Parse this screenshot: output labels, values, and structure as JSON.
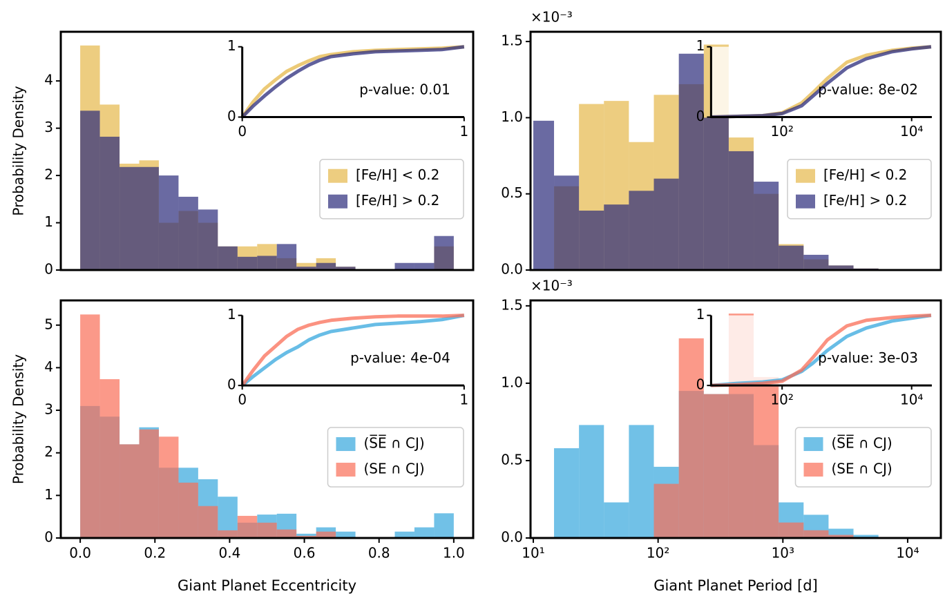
{
  "chart_data": [
    {
      "type": "histogram",
      "ylabel": "Probability Density",
      "bins": [
        0,
        0.0526,
        0.1053,
        0.1579,
        0.2105,
        0.2632,
        0.3158,
        0.3684,
        0.4211,
        0.4737,
        0.5263,
        0.5789,
        0.6316,
        0.6842,
        0.7368,
        0.7895,
        0.8421,
        0.8947,
        0.9474,
        1
      ],
      "series": [
        {
          "name": "[Fe/H] < 0.2",
          "color": "#e6b84a",
          "values": [
            4.75,
            3.5,
            2.25,
            2.32,
            1.0,
            1.25,
            1.0,
            0.5,
            0.5,
            0.55,
            0.25,
            0.15,
            0.25,
            0.07,
            0,
            0,
            0,
            0,
            0.5
          ]
        },
        {
          "name": "[Fe/H] > 0.2",
          "color": "#2b2b7b",
          "values": [
            3.37,
            2.82,
            2.18,
            2.18,
            2.0,
            1.55,
            1.28,
            0.5,
            0.28,
            0.3,
            0.55,
            0.07,
            0.15,
            0.07,
            0,
            0,
            0.15,
            0.15,
            0.72
          ]
        }
      ],
      "alpha": 0.7,
      "xlim": [
        -0.052,
        1.052
      ],
      "ylim": [
        0,
        5.04
      ],
      "yticks": [
        0,
        1,
        2,
        3,
        4
      ],
      "legend": "center right",
      "inset": {
        "type": "line",
        "x": [
          0,
          0.05,
          0.1,
          0.15,
          0.2,
          0.25,
          0.3,
          0.35,
          0.4,
          0.5,
          0.6,
          0.7,
          0.8,
          0.9,
          1.0
        ],
        "series": [
          {
            "color": "#e6b84a",
            "values": [
              0,
              0.22,
              0.4,
              0.53,
              0.65,
              0.73,
              0.8,
              0.86,
              0.89,
              0.93,
              0.95,
              0.96,
              0.97,
              0.98,
              1.0
            ]
          },
          {
            "color": "#2b2b7b",
            "values": [
              0,
              0.16,
              0.3,
              0.43,
              0.55,
              0.65,
              0.74,
              0.81,
              0.86,
              0.9,
              0.93,
              0.94,
              0.95,
              0.96,
              1.0
            ]
          }
        ],
        "xlim": [
          0,
          1
        ],
        "ylim": [
          0,
          1
        ],
        "xticks": [
          0,
          1
        ],
        "yticks": [
          0,
          1
        ],
        "annotation": "p-value: 0.01"
      }
    },
    {
      "type": "histogram",
      "log_x": true,
      "y_multiplier": "×10⁻³",
      "bins": [
        10,
        14.66,
        23.23,
        36.81,
        58.34,
        92.47,
        146.6,
        232.3,
        368.1,
        583.4,
        924.7,
        1466,
        2323,
        3681,
        5834,
        9247
      ],
      "series": [
        {
          "name": "[Fe/H] < 0.2",
          "color": "#e6b84a",
          "values": [
            0,
            0.55,
            1.09,
            1.11,
            0.84,
            1.15,
            1.22,
            1.48,
            0.87,
            0.5,
            0.17,
            0.07,
            0.03,
            0.01,
            0
          ]
        },
        {
          "name": "[Fe/H] > 0.2",
          "color": "#2b2b7b",
          "values": [
            0.98,
            0.62,
            0.39,
            0.43,
            0.52,
            0.6,
            1.42,
            1.0,
            0.78,
            0.58,
            0.16,
            0.1,
            0.03,
            0.01,
            0
          ]
        }
      ],
      "alpha": 0.7,
      "xlim": [
        9.5,
        18450
      ],
      "ylim": [
        0,
        1.564
      ],
      "yticks": [
        {
          "value": 0,
          "label": "0.0"
        },
        0.5,
        {
          "value": 1,
          "label": "1.0"
        },
        1.5
      ],
      "legend": "center right",
      "inset": {
        "type": "line",
        "log_x": true,
        "x": [
          8,
          20,
          50,
          100,
          200,
          300,
          500,
          1000,
          2000,
          5000,
          10000,
          20000
        ],
        "series": [
          {
            "color": "#e6b84a",
            "values": [
              0,
              0.01,
              0.02,
              0.06,
              0.2,
              0.35,
              0.55,
              0.78,
              0.88,
              0.95,
              0.98,
              1.0
            ]
          },
          {
            "color": "#2b2b7b",
            "values": [
              0,
              0.01,
              0.02,
              0.05,
              0.16,
              0.3,
              0.48,
              0.7,
              0.83,
              0.93,
              0.97,
              1.0
            ]
          }
        ],
        "xlim": [
          8,
          20500
        ],
        "ylim": [
          0,
          1
        ],
        "xticks": [
          {
            "value": 100,
            "label": "10²"
          },
          {
            "value": 10000,
            "label": "10⁴"
          }
        ],
        "yticks": [
          0,
          1
        ],
        "annotation": "p-value: 8e-02"
      }
    },
    {
      "type": "histogram",
      "ylabel": "Probability Density",
      "xlabel": "Giant Planet Eccentricity",
      "bins": [
        0,
        0.0526,
        0.1053,
        0.1579,
        0.2105,
        0.2632,
        0.3158,
        0.3684,
        0.4211,
        0.4737,
        0.5263,
        0.5789,
        0.6316,
        0.6842,
        0.7368,
        0.7895,
        0.8421,
        0.8947,
        0.9474,
        1
      ],
      "series": [
        {
          "name": "(S̅E̅ ∩ CJ)",
          "color": "#35a7dd",
          "values": [
            3.1,
            2.85,
            2.2,
            2.6,
            1.65,
            1.65,
            1.38,
            0.97,
            0.36,
            0.55,
            0.57,
            0.1,
            0.25,
            0.15,
            0,
            0,
            0.15,
            0.25,
            0.58
          ]
        },
        {
          "name": "(SE ∩ CJ)",
          "color": "#fa6e57",
          "values": [
            5.25,
            3.73,
            2.2,
            2.55,
            2.38,
            1.3,
            0.75,
            0.18,
            0.52,
            0.36,
            0.2,
            0.05,
            0.15,
            0,
            0,
            0,
            0,
            0,
            0
          ]
        }
      ],
      "alpha": 0.7,
      "xlim": [
        -0.052,
        1.052
      ],
      "ylim": [
        0,
        5.58
      ],
      "xticks": [
        {
          "value": 0,
          "label": "0.0"
        },
        0.2,
        0.4,
        0.6,
        0.8,
        {
          "value": 1,
          "label": "1.0"
        }
      ],
      "yticks": [
        0,
        1,
        2,
        3,
        4,
        5
      ],
      "legend": "center right",
      "inset": {
        "type": "line",
        "x": [
          0,
          0.05,
          0.1,
          0.15,
          0.2,
          0.25,
          0.3,
          0.35,
          0.4,
          0.5,
          0.6,
          0.7,
          0.8,
          0.9,
          1.0
        ],
        "series": [
          {
            "color": "#35a7dd",
            "values": [
              0,
              0.13,
              0.25,
              0.37,
              0.47,
              0.55,
              0.65,
              0.72,
              0.77,
              0.82,
              0.87,
              0.89,
              0.91,
              0.94,
              1.0
            ]
          },
          {
            "color": "#fa6e57",
            "values": [
              0,
              0.22,
              0.42,
              0.56,
              0.7,
              0.8,
              0.86,
              0.9,
              0.93,
              0.96,
              0.98,
              0.99,
              0.99,
              0.99,
              1.0
            ]
          }
        ],
        "xlim": [
          0,
          1
        ],
        "ylim": [
          0,
          1
        ],
        "xticks": [
          0,
          1
        ],
        "yticks": [
          0,
          1
        ],
        "annotation": "p-value: 4e-04"
      }
    },
    {
      "type": "histogram",
      "log_x": true,
      "y_multiplier": "×10⁻³",
      "xlabel": "Giant Planet Period [d]",
      "bins": [
        10,
        14.66,
        23.23,
        36.81,
        58.34,
        92.47,
        146.6,
        232.3,
        368.1,
        583.4,
        924.7,
        1466,
        2323,
        3681,
        5834,
        9247
      ],
      "series": [
        {
          "name": "(S̅E̅ ∩ CJ)",
          "color": "#35a7dd",
          "values": [
            0,
            0.58,
            0.73,
            0.23,
            0.73,
            0.46,
            0.95,
            0.93,
            0.93,
            0.6,
            0.23,
            0.15,
            0.06,
            0.02,
            0
          ]
        },
        {
          "name": "(SE ∩ CJ)",
          "color": "#fa6e57",
          "values": [
            0,
            0,
            0,
            0,
            0,
            0.35,
            1.29,
            0.93,
            1.45,
            1.04,
            0.1,
            0.05,
            0.02,
            0,
            0
          ]
        }
      ],
      "alpha": 0.7,
      "xlim": [
        9.5,
        18450
      ],
      "ylim": [
        0,
        1.535
      ],
      "xticks": [
        {
          "value": 10,
          "label": "10¹"
        },
        {
          "value": 100,
          "label": "10²"
        },
        {
          "value": 1000,
          "label": "10³"
        },
        {
          "value": 10000,
          "label": "10⁴"
        }
      ],
      "yticks": [
        {
          "value": 0,
          "label": "0.0"
        },
        0.5,
        {
          "value": 1,
          "label": "1.0"
        },
        1.5
      ],
      "legend": "center right",
      "inset": {
        "type": "line",
        "log_x": true,
        "x": [
          8,
          20,
          50,
          100,
          200,
          300,
          500,
          1000,
          2000,
          5000,
          10000,
          20000
        ],
        "series": [
          {
            "color": "#35a7dd",
            "values": [
              0,
              0.03,
              0.05,
              0.08,
              0.2,
              0.32,
              0.5,
              0.7,
              0.82,
              0.92,
              0.96,
              1.0
            ]
          },
          {
            "color": "#fa6e57",
            "values": [
              0,
              0.01,
              0.03,
              0.06,
              0.22,
              0.4,
              0.65,
              0.85,
              0.93,
              0.97,
              0.99,
              1.0
            ]
          }
        ],
        "xlim": [
          8,
          20500
        ],
        "ylim": [
          0,
          1
        ],
        "xticks": [
          {
            "value": 100,
            "label": "10²"
          },
          {
            "value": 10000,
            "label": "10⁴"
          }
        ],
        "yticks": [
          0,
          1
        ],
        "annotation": "p-value: 3e-03"
      }
    }
  ]
}
